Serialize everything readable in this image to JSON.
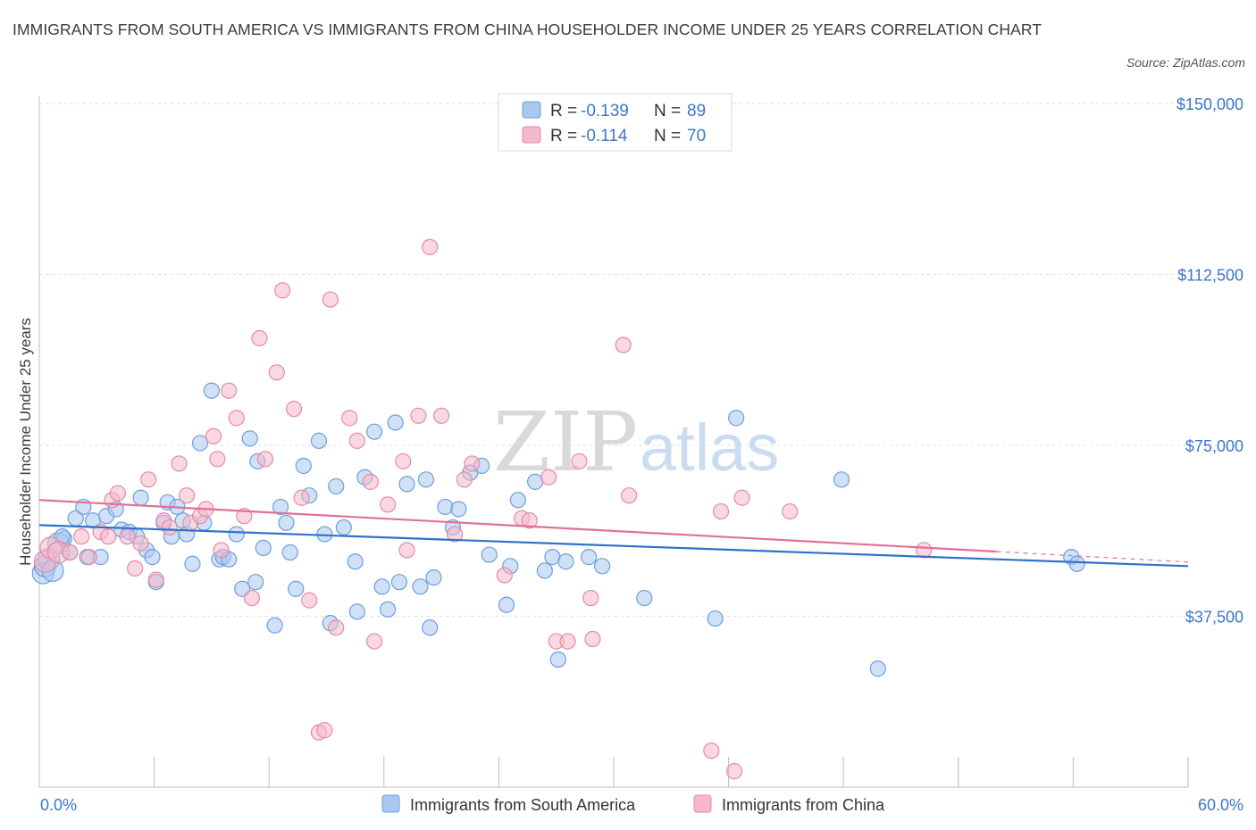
{
  "title": "IMMIGRANTS FROM SOUTH AMERICA VS IMMIGRANTS FROM CHINA HOUSEHOLDER INCOME UNDER 25 YEARS CORRELATION CHART",
  "source": "Source: ZipAtlas.com",
  "watermark": {
    "zip": "ZIP",
    "atlas": "atlas"
  },
  "legend": {
    "rows": [
      {
        "r_label": "R =",
        "r_value": "-0.139",
        "n_label": "N =",
        "n_value": "89",
        "color": "#a9c8f0"
      },
      {
        "r_label": "R =",
        "r_value": "-0.114",
        "n_label": "N =",
        "n_value": "70",
        "color": "#f5b8cb"
      }
    ]
  },
  "colors": {
    "blue_fill": "#a9c8f0",
    "blue_stroke": "#6b9fdc",
    "blue_line": "#2f72c9",
    "pink_fill": "#f5b8cb",
    "pink_stroke": "#e58aa7",
    "pink_line": "#e0709a",
    "axis_text": "#3a78c8",
    "grid": "#dddddd"
  },
  "chart_data": {
    "type": "scatter",
    "xlabel": "",
    "ylabel": "Householder Income Under 25 years",
    "xlim": [
      0,
      60
    ],
    "ylim": [
      0,
      150000
    ],
    "x_tick_labels": [
      "0.0%",
      "60.0%"
    ],
    "y_tick_labels": [
      "$37,500",
      "$75,000",
      "$112,500",
      "$150,000"
    ],
    "y_ticks": [
      37500,
      75000,
      112500,
      150000
    ],
    "grid": true,
    "legend_position": "top-center",
    "series": [
      {
        "name": "Immigrants from South America",
        "color": "#a9c8f0",
        "trend": {
          "x": [
            0,
            60
          ],
          "y": [
            57500,
            48500
          ]
        },
        "points": [
          [
            0.2,
            47000
          ],
          [
            0.3,
            48500
          ],
          [
            0.5,
            50000
          ],
          [
            1.0,
            53500
          ],
          [
            1.3,
            54500
          ],
          [
            1.6,
            51500
          ],
          [
            1.9,
            59000
          ],
          [
            2.3,
            61500
          ],
          [
            2.5,
            50500
          ],
          [
            2.8,
            58500
          ],
          [
            3.2,
            50500
          ],
          [
            3.5,
            59500
          ],
          [
            4.0,
            61000
          ],
          [
            4.3,
            56500
          ],
          [
            4.7,
            56000
          ],
          [
            5.1,
            55000
          ],
          [
            5.3,
            63500
          ],
          [
            5.6,
            52000
          ],
          [
            5.9,
            50500
          ],
          [
            6.1,
            45000
          ],
          [
            6.5,
            58000
          ],
          [
            6.7,
            62500
          ],
          [
            6.9,
            55000
          ],
          [
            7.2,
            61500
          ],
          [
            7.5,
            58500
          ],
          [
            7.7,
            55500
          ],
          [
            8.0,
            49000
          ],
          [
            8.4,
            75500
          ],
          [
            8.6,
            58000
          ],
          [
            9.0,
            87000
          ],
          [
            9.4,
            50000
          ],
          [
            9.6,
            50500
          ],
          [
            9.9,
            50000
          ],
          [
            10.3,
            55500
          ],
          [
            10.6,
            43500
          ],
          [
            11.0,
            76500
          ],
          [
            11.3,
            45000
          ],
          [
            11.4,
            71500
          ],
          [
            11.7,
            52500
          ],
          [
            12.3,
            35500
          ],
          [
            12.6,
            61500
          ],
          [
            12.9,
            58000
          ],
          [
            13.1,
            51500
          ],
          [
            13.4,
            43500
          ],
          [
            13.8,
            70500
          ],
          [
            14.1,
            64000
          ],
          [
            14.6,
            76000
          ],
          [
            14.9,
            55500
          ],
          [
            15.2,
            36000
          ],
          [
            15.5,
            66000
          ],
          [
            15.9,
            57000
          ],
          [
            16.5,
            49500
          ],
          [
            16.6,
            38500
          ],
          [
            17.0,
            68000
          ],
          [
            17.5,
            78000
          ],
          [
            17.9,
            44000
          ],
          [
            18.2,
            39000
          ],
          [
            18.6,
            80000
          ],
          [
            18.8,
            45000
          ],
          [
            19.2,
            66500
          ],
          [
            19.9,
            44000
          ],
          [
            20.2,
            67500
          ],
          [
            20.4,
            35000
          ],
          [
            20.6,
            46000
          ],
          [
            21.2,
            61500
          ],
          [
            21.6,
            57000
          ],
          [
            21.9,
            61000
          ],
          [
            22.5,
            69000
          ],
          [
            23.1,
            70500
          ],
          [
            23.5,
            51000
          ],
          [
            24.4,
            40000
          ],
          [
            24.6,
            48500
          ],
          [
            25.0,
            63000
          ],
          [
            25.9,
            67000
          ],
          [
            26.4,
            47500
          ],
          [
            26.8,
            50500
          ],
          [
            27.1,
            28000
          ],
          [
            27.5,
            49500
          ],
          [
            28.7,
            50500
          ],
          [
            29.4,
            48500
          ],
          [
            31.6,
            41500
          ],
          [
            35.3,
            37000
          ],
          [
            36.4,
            81000
          ],
          [
            41.9,
            67500
          ],
          [
            43.8,
            26000
          ],
          [
            53.9,
            50500
          ],
          [
            54.2,
            49000
          ],
          [
            0.7,
            47500
          ],
          [
            1.2,
            55000
          ]
        ]
      },
      {
        "name": "Immigrants from China",
        "color": "#f5b8cb",
        "trend": {
          "x": [
            0,
            50
          ],
          "y": [
            63000,
            51700
          ]
        },
        "trend_dashed": {
          "x": [
            50,
            60
          ],
          "y": [
            51700,
            49400
          ]
        },
        "points": [
          [
            0.3,
            49500
          ],
          [
            0.6,
            52500
          ],
          [
            1.0,
            51500
          ],
          [
            1.6,
            51500
          ],
          [
            2.2,
            55000
          ],
          [
            2.6,
            50500
          ],
          [
            3.2,
            56000
          ],
          [
            3.6,
            55000
          ],
          [
            3.8,
            63000
          ],
          [
            4.1,
            64500
          ],
          [
            4.6,
            55000
          ],
          [
            5.0,
            48000
          ],
          [
            5.3,
            53500
          ],
          [
            5.7,
            67500
          ],
          [
            6.1,
            45500
          ],
          [
            6.5,
            58500
          ],
          [
            6.8,
            57000
          ],
          [
            7.3,
            71000
          ],
          [
            7.7,
            64000
          ],
          [
            7.9,
            58000
          ],
          [
            8.4,
            59500
          ],
          [
            8.7,
            61000
          ],
          [
            9.1,
            77000
          ],
          [
            9.3,
            72000
          ],
          [
            9.5,
            52000
          ],
          [
            9.9,
            87000
          ],
          [
            10.3,
            81000
          ],
          [
            10.7,
            59500
          ],
          [
            11.1,
            41500
          ],
          [
            11.5,
            98500
          ],
          [
            11.8,
            72000
          ],
          [
            12.4,
            91000
          ],
          [
            12.7,
            109000
          ],
          [
            13.3,
            83000
          ],
          [
            13.7,
            63500
          ],
          [
            14.1,
            41000
          ],
          [
            14.6,
            12000
          ],
          [
            14.9,
            12500
          ],
          [
            15.2,
            107000
          ],
          [
            15.5,
            35000
          ],
          [
            16.2,
            81000
          ],
          [
            16.6,
            76000
          ],
          [
            17.3,
            67000
          ],
          [
            17.5,
            32000
          ],
          [
            18.2,
            62000
          ],
          [
            19.0,
            71500
          ],
          [
            19.2,
            52000
          ],
          [
            19.8,
            81500
          ],
          [
            20.4,
            118500
          ],
          [
            21.0,
            81500
          ],
          [
            21.7,
            55500
          ],
          [
            22.2,
            67500
          ],
          [
            22.6,
            71000
          ],
          [
            24.3,
            46500
          ],
          [
            25.2,
            59000
          ],
          [
            25.6,
            58500
          ],
          [
            26.6,
            68000
          ],
          [
            27.0,
            32000
          ],
          [
            27.6,
            32000
          ],
          [
            28.2,
            71500
          ],
          [
            28.8,
            41500
          ],
          [
            28.9,
            32500
          ],
          [
            30.5,
            97000
          ],
          [
            30.8,
            64000
          ],
          [
            35.1,
            8000
          ],
          [
            35.6,
            60500
          ],
          [
            36.3,
            3500
          ],
          [
            36.7,
            63500
          ],
          [
            39.2,
            60500
          ],
          [
            46.2,
            52000
          ]
        ]
      }
    ]
  },
  "bottom_legend": [
    {
      "label": "Immigrants from South America",
      "color": "#a9c8f0"
    },
    {
      "label": "Immigrants from China",
      "color": "#f5b8cb"
    }
  ]
}
